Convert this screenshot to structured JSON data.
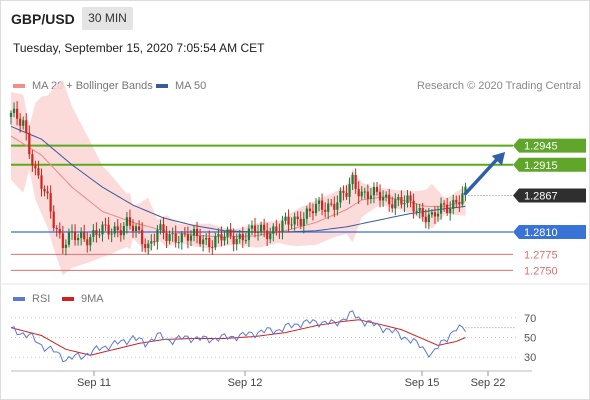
{
  "header": {
    "pair": "GBP/USD",
    "timeframe": "30 MIN",
    "timestamp": "Tuesday, September 15, 2020 7:05:54 AM CET"
  },
  "legend": {
    "ma20_label": "MA 20 + Bollinger Bands",
    "ma50_label": "MA 50",
    "copyright": "Research © 2020 Trading Central",
    "rsi_label": "RSI",
    "ma9_label": "9MA"
  },
  "colors": {
    "up_candle": "#1e7a38",
    "down_candle": "#d0241c",
    "bollinger_fill": "#fbd5d5",
    "ma20": "#e98a8a",
    "ma50": "#3a5a9c",
    "resistance": "#5aaa1e",
    "support_blue": "#3a6fd0",
    "support_red": "#e07070",
    "current_price_tag": "#2f2f2f",
    "arrow": "#2f5fa8",
    "rsi_line": "#5b78d6",
    "rsi_ma": "#d42020"
  },
  "chart_data": [
    {
      "type": "candlestick",
      "title": "GBP/USD",
      "x_labels": [
        "Sep 11",
        "Sep 12",
        "Sep 15",
        "Sep 22"
      ],
      "ylim": [
        1.2735,
        1.301
      ],
      "close_path": [
        [
          0,
          1.299
        ],
        [
          4,
          1.2985
        ],
        [
          8,
          1.29
        ],
        [
          12,
          1.286
        ],
        [
          14,
          1.283
        ],
        [
          17,
          1.2792
        ],
        [
          20,
          1.28
        ],
        [
          26,
          1.2805
        ],
        [
          32,
          1.2812
        ],
        [
          38,
          1.2822
        ],
        [
          42,
          1.2805
        ],
        [
          45,
          1.279
        ],
        [
          48,
          1.2812
        ],
        [
          51,
          1.28
        ],
        [
          55,
          1.2806
        ],
        [
          60,
          1.28
        ],
        [
          65,
          1.2797
        ],
        [
          70,
          1.28
        ],
        [
          76,
          1.2805
        ],
        [
          82,
          1.2812
        ],
        [
          88,
          1.2815
        ],
        [
          94,
          1.2832
        ],
        [
          100,
          1.2845
        ],
        [
          106,
          1.2857
        ],
        [
          110,
          1.2868
        ],
        [
          112,
          1.289
        ],
        [
          115,
          1.2873
        ],
        [
          120,
          1.2865
        ],
        [
          126,
          1.286
        ],
        [
          132,
          1.285
        ],
        [
          136,
          1.2838
        ],
        [
          138,
          1.283
        ],
        [
          142,
          1.2848
        ],
        [
          146,
          1.286
        ],
        [
          149,
          1.2867
        ]
      ],
      "ma20_path": [
        [
          0,
          1.296
        ],
        [
          10,
          1.293
        ],
        [
          20,
          1.288
        ],
        [
          30,
          1.2842
        ],
        [
          40,
          1.2825
        ],
        [
          50,
          1.2812
        ],
        [
          60,
          1.2805
        ],
        [
          70,
          1.2802
        ],
        [
          80,
          1.2804
        ],
        [
          90,
          1.2812
        ],
        [
          100,
          1.2825
        ],
        [
          110,
          1.2845
        ],
        [
          115,
          1.286
        ],
        [
          122,
          1.2865
        ],
        [
          130,
          1.2858
        ],
        [
          136,
          1.285
        ],
        [
          142,
          1.285
        ],
        [
          149,
          1.2858
        ]
      ],
      "ma50_path": [
        [
          0,
          1.2975
        ],
        [
          10,
          1.2955
        ],
        [
          20,
          1.2915
        ],
        [
          30,
          1.288
        ],
        [
          40,
          1.2852
        ],
        [
          50,
          1.2832
        ],
        [
          60,
          1.282
        ],
        [
          70,
          1.2812
        ],
        [
          80,
          1.281
        ],
        [
          90,
          1.281
        ],
        [
          100,
          1.2812
        ],
        [
          110,
          1.2818
        ],
        [
          120,
          1.2828
        ],
        [
          130,
          1.2838
        ],
        [
          140,
          1.2845
        ],
        [
          149,
          1.285
        ]
      ],
      "levels": [
        {
          "value": 1.2945,
          "label": "1.2945",
          "kind": "resistance"
        },
        {
          "value": 1.2915,
          "label": "1.2915",
          "kind": "resistance"
        },
        {
          "value": 1.2867,
          "label": "1.2867",
          "kind": "current"
        },
        {
          "value": 1.281,
          "label": "1.2810",
          "kind": "pivot"
        },
        {
          "value": 1.2775,
          "label": "1.2775",
          "kind": "support"
        },
        {
          "value": 1.275,
          "label": "1.2750",
          "kind": "support"
        }
      ],
      "arrow": {
        "from": [
          149,
          1.287
        ],
        "to": [
          162,
          1.2935
        ]
      }
    },
    {
      "type": "line",
      "title": "RSI",
      "ylim": [
        15,
        85
      ],
      "y_ticks": [
        70,
        50,
        30
      ],
      "series": [
        {
          "name": "RSI",
          "values_path": [
            [
              0,
              58
            ],
            [
              6,
              52
            ],
            [
              10,
              42
            ],
            [
              14,
              36
            ],
            [
              18,
              28
            ],
            [
              24,
              32
            ],
            [
              30,
              40
            ],
            [
              36,
              45
            ],
            [
              40,
              50
            ],
            [
              44,
              44
            ],
            [
              48,
              52
            ],
            [
              52,
              47
            ],
            [
              58,
              50
            ],
            [
              64,
              48
            ],
            [
              70,
              50
            ],
            [
              76,
              52
            ],
            [
              82,
              56
            ],
            [
              88,
              58
            ],
            [
              94,
              64
            ],
            [
              100,
              66
            ],
            [
              106,
              64
            ],
            [
              112,
              74
            ],
            [
              116,
              66
            ],
            [
              122,
              60
            ],
            [
              128,
              52
            ],
            [
              134,
              42
            ],
            [
              138,
              32
            ],
            [
              142,
              48
            ],
            [
              146,
              58
            ],
            [
              149,
              60
            ]
          ]
        },
        {
          "name": "9MA",
          "values_path": [
            [
              0,
              60
            ],
            [
              10,
              52
            ],
            [
              18,
              38
            ],
            [
              26,
              32
            ],
            [
              34,
              38
            ],
            [
              42,
              44
            ],
            [
              50,
              48
            ],
            [
              60,
              49
            ],
            [
              70,
              49
            ],
            [
              80,
              51
            ],
            [
              90,
              55
            ],
            [
              100,
              62
            ],
            [
              108,
              66
            ],
            [
              114,
              68
            ],
            [
              120,
              64
            ],
            [
              128,
              58
            ],
            [
              134,
              50
            ],
            [
              140,
              42
            ],
            [
              146,
              46
            ],
            [
              149,
              50
            ]
          ]
        }
      ]
    }
  ]
}
